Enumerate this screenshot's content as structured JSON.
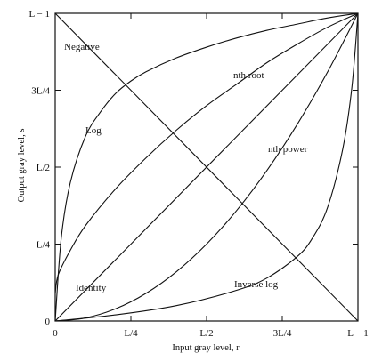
{
  "chart_data": {
    "type": "line",
    "title": "",
    "xlabel": "Input gray level, r",
    "ylabel": "Output gray level, s",
    "xlim": [
      0,
      1
    ],
    "ylim": [
      0,
      1
    ],
    "x_tick_values": [
      0,
      0.25,
      0.5,
      0.75,
      1
    ],
    "x_tick_labels": [
      "0",
      "L/4",
      "L/2",
      "3L/4",
      "L − 1"
    ],
    "y_tick_values": [
      0,
      0.25,
      0.5,
      0.75,
      1
    ],
    "y_tick_labels": [
      "0",
      "L/4",
      "L/2",
      "3L/4",
      "L − 1"
    ],
    "grid": false,
    "series": [
      {
        "name": "Negative",
        "x": [
          0,
          1
        ],
        "y": [
          1,
          0
        ]
      },
      {
        "name": "Identity",
        "x": [
          0,
          1
        ],
        "y": [
          0,
          1
        ]
      },
      {
        "name": "Log",
        "x": [
          0,
          0.02,
          0.05,
          0.1,
          0.15,
          0.2,
          0.25,
          0.3,
          0.4,
          0.5,
          0.6,
          0.7,
          0.8,
          0.9,
          1
        ],
        "y": [
          0,
          0.27,
          0.45,
          0.6,
          0.68,
          0.74,
          0.78,
          0.81,
          0.855,
          0.89,
          0.92,
          0.945,
          0.965,
          0.985,
          1
        ]
      },
      {
        "name": "nth root",
        "x": [
          0,
          0.01,
          0.05,
          0.1,
          0.2,
          0.3,
          0.4,
          0.5,
          0.6,
          0.7,
          0.8,
          0.9,
          1
        ],
        "y": [
          0.09,
          0.15,
          0.23,
          0.31,
          0.43,
          0.53,
          0.62,
          0.7,
          0.77,
          0.84,
          0.9,
          0.955,
          1
        ]
      },
      {
        "name": "nth power",
        "x": [
          0,
          0.1,
          0.2,
          0.3,
          0.4,
          0.5,
          0.6,
          0.7,
          0.8,
          0.9,
          1
        ],
        "y": [
          0,
          0.01,
          0.04,
          0.09,
          0.16,
          0.25,
          0.36,
          0.49,
          0.64,
          0.81,
          1
        ]
      },
      {
        "name": "Inverse log",
        "x": [
          0,
          0.2,
          0.4,
          0.6,
          0.7,
          0.8,
          0.85,
          0.9,
          0.95,
          0.98,
          1
        ],
        "y": [
          0,
          0.02,
          0.05,
          0.1,
          0.14,
          0.21,
          0.27,
          0.37,
          0.56,
          0.76,
          1
        ]
      }
    ]
  }
}
